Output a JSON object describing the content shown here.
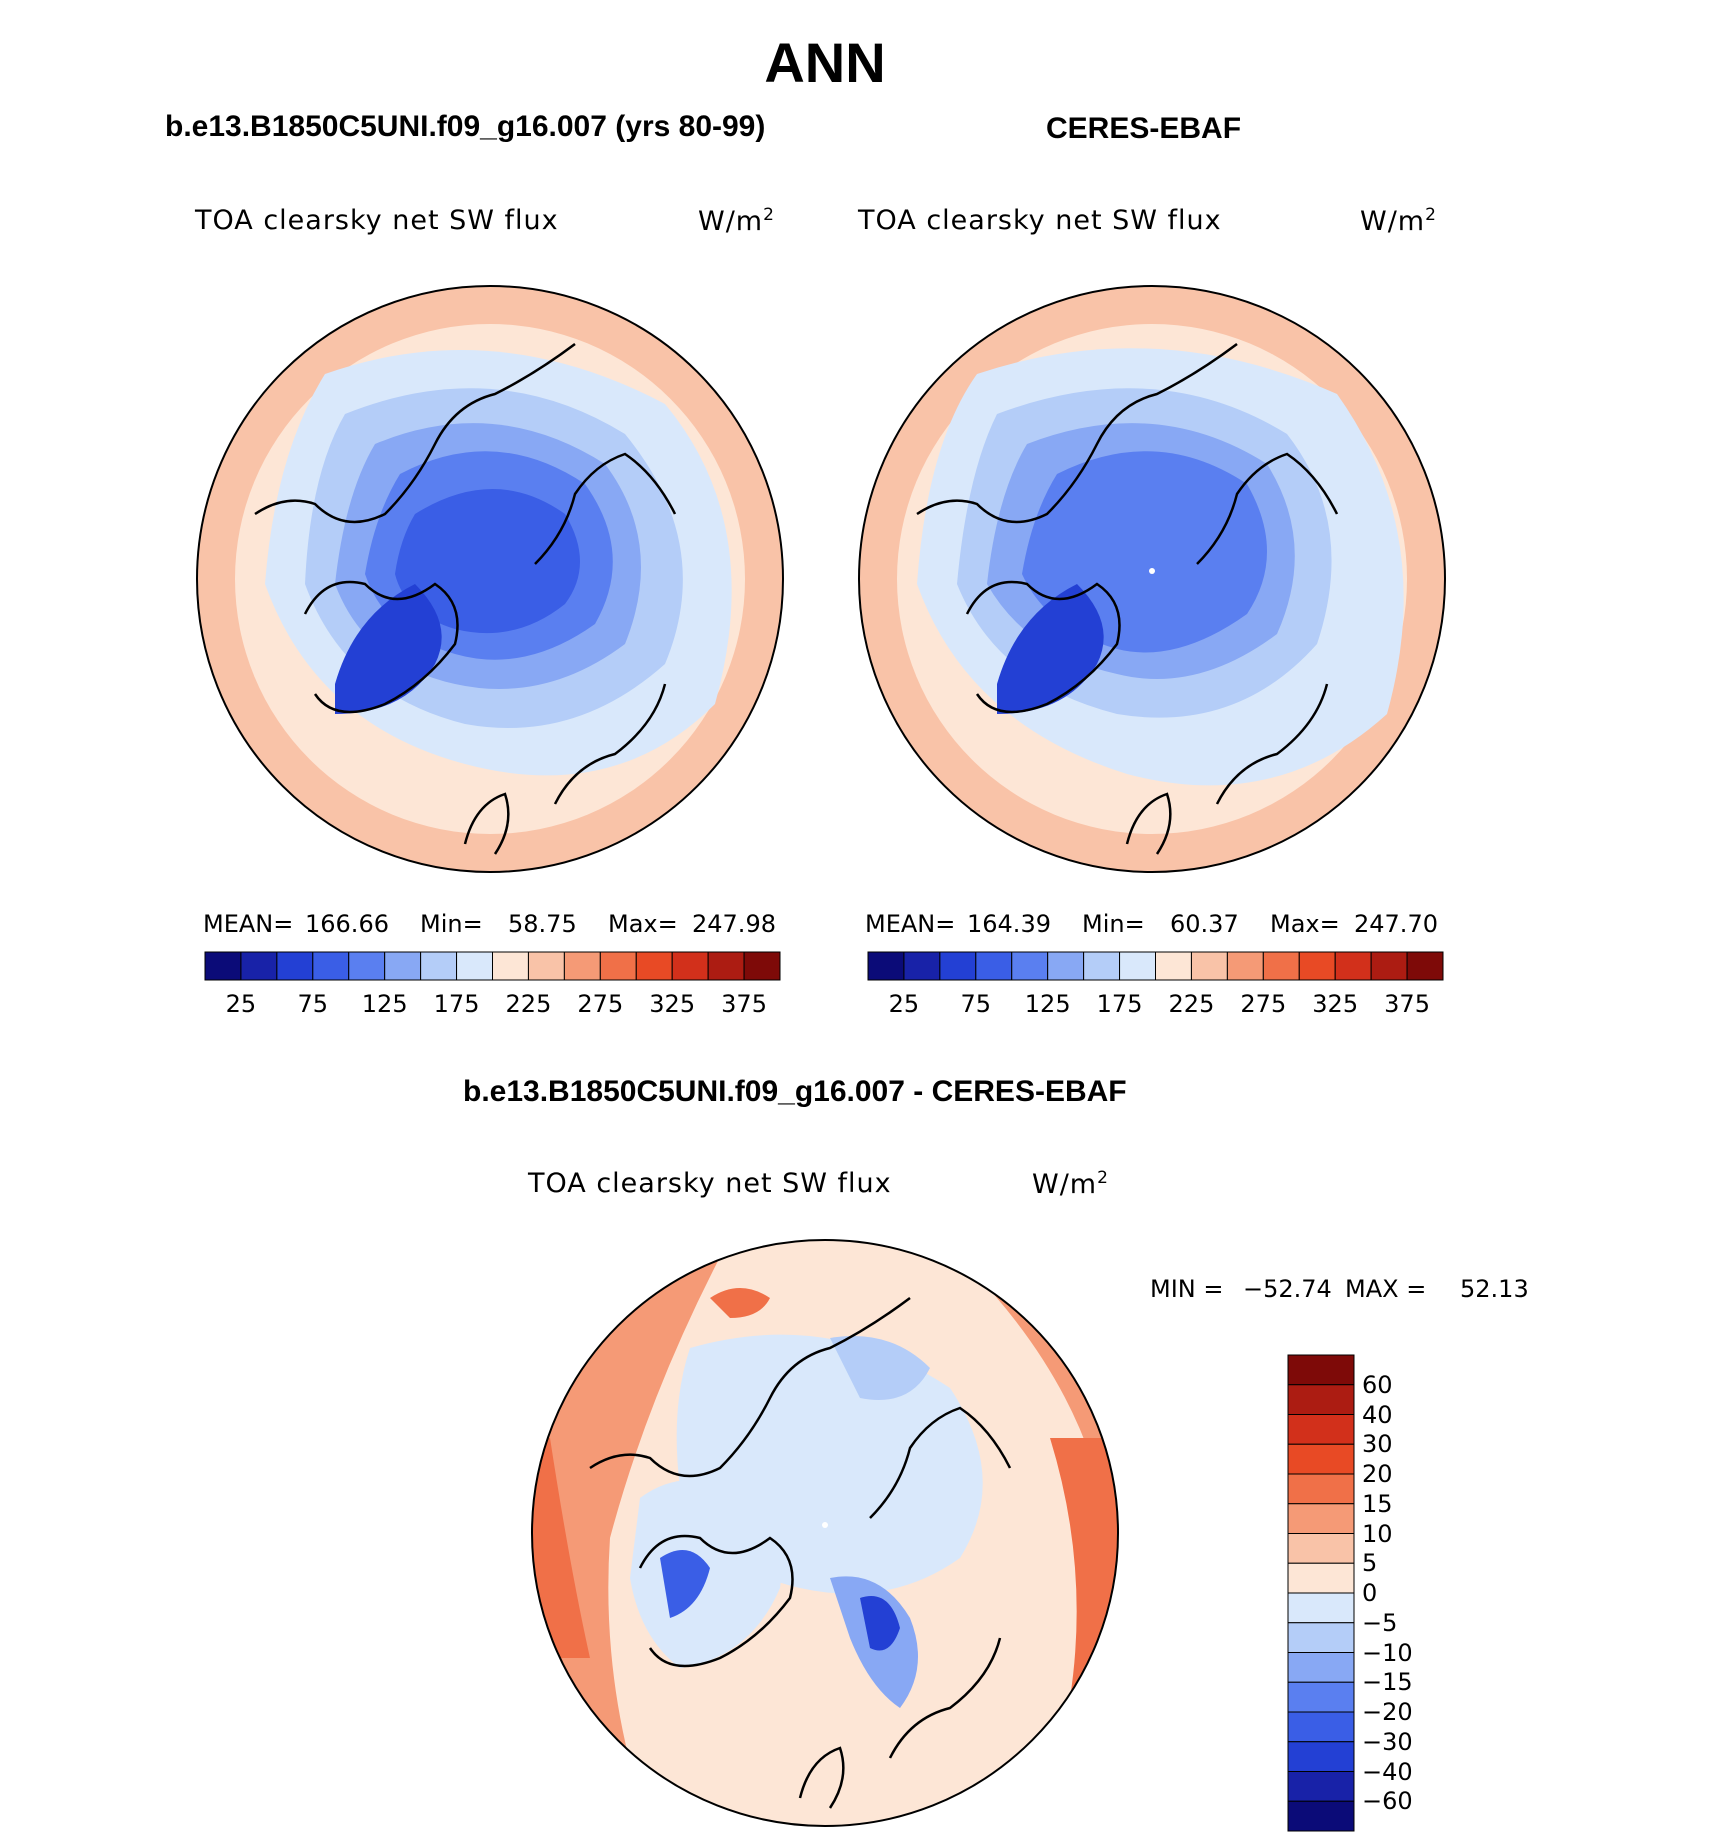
{
  "page_title": "ANN",
  "panels": [
    {
      "case_title": "b.e13.B1850C5UNI.f09_g16.007 (yrs 80-99)",
      "variable": "TOA clearsky net SW flux",
      "units": "W/m",
      "units_sup": "2",
      "stats": {
        "mean_label": "MEAN=",
        "mean": "166.66",
        "min_label": "Min=",
        "min": "58.75",
        "max_label": "Max=",
        "max": "247.98"
      }
    },
    {
      "case_title": "CERES-EBAF",
      "variable": "TOA clearsky net SW flux",
      "units": "W/m",
      "units_sup": "2",
      "stats": {
        "mean_label": "MEAN=",
        "mean": "164.39",
        "min_label": "Min=",
        "min": "60.37",
        "max_label": "Max=",
        "max": "247.70"
      }
    }
  ],
  "diff_panel": {
    "case_title": "b.e13.B1850C5UNI.f09_g16.007 - CERES-EBAF",
    "variable": "TOA clearsky net SW flux",
    "units": "W/m",
    "units_sup": "2",
    "minmax": {
      "min_label": "MIN =",
      "min": "−52.74",
      "max_label": "MAX =",
      "max": "52.13"
    }
  },
  "chart_data": [
    {
      "type": "heatmap",
      "projection": "north polar stereographic",
      "title": "TOA clearsky net SW flux",
      "units": "W/m2",
      "colorbar_orientation": "horizontal",
      "colorbar_ticks": [
        "25",
        "75",
        "125",
        "175",
        "225",
        "275",
        "325",
        "375"
      ],
      "colorbar_levels": [
        0,
        25,
        50,
        75,
        100,
        125,
        150,
        175,
        200,
        225,
        250,
        275,
        300,
        325,
        350,
        375,
        400
      ],
      "colorbar_colors": [
        "#0b0b78",
        "#1822a8",
        "#2340d4",
        "#3a5ee6",
        "#5a7ff0",
        "#88a8f4",
        "#b4cdf8",
        "#d9e8fb",
        "#fde6d6",
        "#f9c3a8",
        "#f59a76",
        "#f07048",
        "#e84a25",
        "#d2301b",
        "#ac1c12",
        "#7e0a08"
      ],
      "mean": 166.66,
      "min": 58.75,
      "max": 247.98
    },
    {
      "type": "heatmap",
      "projection": "north polar stereographic",
      "title": "TOA clearsky net SW flux",
      "units": "W/m2",
      "colorbar_orientation": "horizontal",
      "colorbar_ticks": [
        "25",
        "75",
        "125",
        "175",
        "225",
        "275",
        "325",
        "375"
      ],
      "colorbar_levels": [
        0,
        25,
        50,
        75,
        100,
        125,
        150,
        175,
        200,
        225,
        250,
        275,
        300,
        325,
        350,
        375,
        400
      ],
      "colorbar_colors": [
        "#0b0b78",
        "#1822a8",
        "#2340d4",
        "#3a5ee6",
        "#5a7ff0",
        "#88a8f4",
        "#b4cdf8",
        "#d9e8fb",
        "#fde6d6",
        "#f9c3a8",
        "#f59a76",
        "#f07048",
        "#e84a25",
        "#d2301b",
        "#ac1c12",
        "#7e0a08"
      ],
      "mean": 164.39,
      "min": 60.37,
      "max": 247.7
    },
    {
      "type": "heatmap",
      "projection": "north polar stereographic",
      "title": "TOA clearsky net SW flux",
      "units": "W/m2",
      "colorbar_orientation": "vertical",
      "colorbar_ticks": [
        "60",
        "40",
        "30",
        "20",
        "15",
        "10",
        "5",
        "0",
        "−5",
        "−10",
        "−15",
        "−20",
        "−30",
        "−40",
        "−60"
      ],
      "colorbar_colors_top_to_bottom": [
        "#7e0a08",
        "#ac1c12",
        "#d2301b",
        "#e84a25",
        "#f07048",
        "#f59a76",
        "#f9c3a8",
        "#fde6d6",
        "#d9e8fb",
        "#b4cdf8",
        "#88a8f4",
        "#5a7ff0",
        "#3a5ee6",
        "#2340d4",
        "#1822a8",
        "#0b0b78"
      ],
      "min": -52.74,
      "max": 52.13
    }
  ]
}
